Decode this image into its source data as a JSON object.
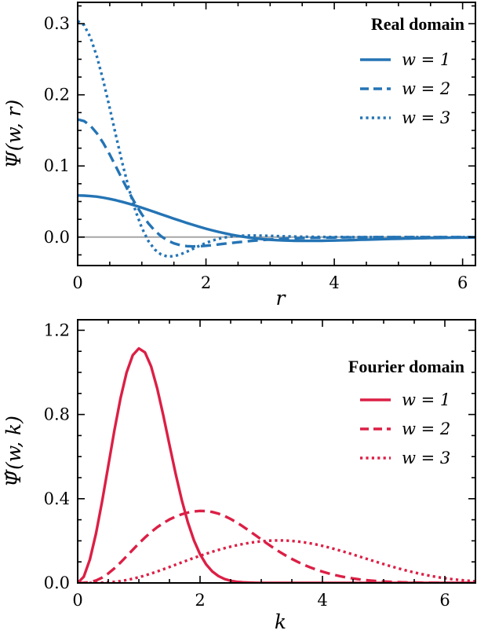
{
  "chart_data": [
    {
      "type": "line",
      "panel": "top",
      "color": "#2474b5",
      "xlabel": "r",
      "ylabel": "Ψ(w, r)",
      "xlim": [
        0,
        6.2
      ],
      "ylim": [
        -0.04,
        0.33
      ],
      "xticks": [
        0,
        2,
        4,
        6
      ],
      "xtick_labels": [
        "0",
        "2",
        "4",
        "6"
      ],
      "yticks": [
        0.0,
        0.1,
        0.2,
        0.3
      ],
      "ytick_labels": [
        "0.0",
        "0.1",
        "0.2",
        "0.3"
      ],
      "zero_line": true,
      "legend": {
        "title": "Real domain",
        "placement": "top-right",
        "entries": [
          {
            "label": "w = 1",
            "style": "solid"
          },
          {
            "label": "w = 2",
            "style": "dashed"
          },
          {
            "label": "w = 3",
            "style": "dotted"
          }
        ]
      },
      "x": [
        0,
        0.1,
        0.2,
        0.3,
        0.4,
        0.5,
        0.6,
        0.7,
        0.8,
        0.9,
        1.0,
        1.1,
        1.2,
        1.3,
        1.4,
        1.5,
        1.6,
        1.7,
        1.8,
        1.9,
        2.0,
        2.1,
        2.2,
        2.3,
        2.4,
        2.5,
        2.6,
        2.7,
        2.8,
        2.9,
        3.0,
        3.1,
        3.2,
        3.3,
        3.4,
        3.5,
        3.6,
        3.7,
        3.8,
        3.9,
        4.0,
        4.1,
        4.2,
        4.3,
        4.4,
        4.5,
        4.6,
        4.7,
        4.8,
        4.9,
        5.0,
        5.1,
        5.2,
        5.3,
        5.4,
        5.5,
        5.6,
        5.7,
        5.8,
        5.9,
        6.0,
        6.1,
        6.2
      ],
      "series": [
        {
          "name": "w = 1",
          "style": "solid",
          "values": [
            0.0585,
            0.0583,
            0.0577,
            0.0568,
            0.0554,
            0.0537,
            0.0517,
            0.0494,
            0.0469,
            0.0442,
            0.0413,
            0.0383,
            0.0352,
            0.0321,
            0.029,
            0.0259,
            0.0229,
            0.0199,
            0.0171,
            0.0144,
            0.0118,
            0.0094,
            0.0072,
            0.0052,
            0.0033,
            0.0017,
            0.0002,
            -0.001,
            -0.0021,
            -0.003,
            -0.0037,
            -0.0043,
            -0.0047,
            -0.005,
            -0.0052,
            -0.0053,
            -0.0053,
            -0.0053,
            -0.0052,
            -0.005,
            -0.0048,
            -0.0046,
            -0.0044,
            -0.0041,
            -0.0038,
            -0.0036,
            -0.0033,
            -0.003,
            -0.0028,
            -0.0025,
            -0.0023,
            -0.0021,
            -0.0019,
            -0.0017,
            -0.0015,
            -0.0013,
            -0.0012,
            -0.0011,
            -0.0009,
            -0.0008,
            -0.0007,
            -0.0007,
            -0.0006
          ]
        },
        {
          "name": "w = 2",
          "style": "dashed",
          "values": [
            0.1654,
            0.1631,
            0.1565,
            0.1459,
            0.1321,
            0.116,
            0.0984,
            0.0805,
            0.0629,
            0.0466,
            0.032,
            0.0195,
            0.0092,
            0.0012,
            -0.0047,
            -0.0088,
            -0.0114,
            -0.0127,
            -0.0131,
            -0.0129,
            -0.0122,
            -0.0113,
            -0.0103,
            -0.0092,
            -0.0082,
            -0.0072,
            -0.0063,
            -0.0054,
            -0.0047,
            -0.004,
            -0.0034,
            -0.0029,
            -0.0024,
            -0.002,
            -0.0017,
            -0.0014,
            -0.0012,
            -0.001,
            -0.0008,
            -0.0007,
            -0.0005,
            -0.0004,
            -0.0003,
            -0.0003,
            -0.0002,
            -0.0002,
            -0.0001,
            -0.0001,
            -0.0001,
            -0.0001,
            0,
            0,
            0,
            0,
            0,
            0,
            0,
            0,
            0,
            0,
            0,
            0,
            0
          ]
        },
        {
          "name": "w = 3",
          "style": "dotted",
          "values": [
            0.3039,
            0.2979,
            0.2806,
            0.2537,
            0.2196,
            0.1812,
            0.1413,
            0.1027,
            0.0675,
            0.0373,
            0.013,
            -0.0052,
            -0.0174,
            -0.0245,
            -0.0273,
            -0.0269,
            -0.0244,
            -0.0206,
            -0.0163,
            -0.0121,
            -0.0082,
            -0.0049,
            -0.0023,
            -0.0004,
            0.0009,
            0.0017,
            0.0021,
            0.0022,
            0.0021,
            0.0019,
            0.0017,
            0.0014,
            0.0011,
            0.0009,
            0.0007,
            0.0005,
            0.0004,
            0.0003,
            0.0002,
            0.0001,
            0.0001,
            0.0001,
            0,
            0,
            0,
            0,
            0,
            0,
            0,
            0,
            0,
            0,
            0,
            0,
            0,
            0,
            0,
            0,
            0,
            0,
            0,
            0,
            0
          ]
        }
      ]
    },
    {
      "type": "line",
      "panel": "bottom",
      "color": "#dc1f45",
      "xlabel": "k",
      "ylabel": "Ψ̂(w, k)",
      "xlim": [
        0,
        6.5
      ],
      "ylim": [
        0,
        1.25
      ],
      "xticks": [
        0,
        2,
        4,
        6
      ],
      "xtick_labels": [
        "0",
        "2",
        "4",
        "6"
      ],
      "yticks": [
        0.0,
        0.4,
        0.8,
        1.2
      ],
      "ytick_labels": [
        "0.0",
        "0.4",
        "0.8",
        "1.2"
      ],
      "zero_line": false,
      "legend": {
        "title": "Fourier domain",
        "placement": "top-right",
        "entries": [
          {
            "label": "w = 1",
            "style": "solid"
          },
          {
            "label": "w = 2",
            "style": "dashed"
          },
          {
            "label": "w = 3",
            "style": "dotted"
          }
        ]
      },
      "x": [
        0,
        0.1,
        0.2,
        0.3,
        0.4,
        0.5,
        0.6,
        0.7,
        0.8,
        0.9,
        1.0,
        1.1,
        1.2,
        1.3,
        1.4,
        1.5,
        1.6,
        1.7,
        1.8,
        1.9,
        2.0,
        2.1,
        2.2,
        2.3,
        2.4,
        2.5,
        2.6,
        2.7,
        2.8,
        2.9,
        3.0,
        3.1,
        3.2,
        3.3,
        3.4,
        3.5,
        3.6,
        3.7,
        3.8,
        3.9,
        4.0,
        4.1,
        4.2,
        4.3,
        4.4,
        4.5,
        4.6,
        4.7,
        4.8,
        4.9,
        5.0,
        5.1,
        5.2,
        5.3,
        5.4,
        5.5,
        5.6,
        5.7,
        5.8,
        5.9,
        6.0,
        6.1,
        6.2,
        6.3,
        6.4,
        6.5
      ],
      "series": [
        {
          "name": "w = 1",
          "style": "solid",
          "values": [
            0,
            0.0295,
            0.1117,
            0.2353,
            0.3883,
            0.556,
            0.7244,
            0.8768,
            0.9999,
            1.0816,
            1.1138,
            1.0949,
            1.0286,
            0.9235,
            0.795,
            0.6561,
            0.5195,
            0.395,
            0.2884,
            0.2022,
            0.1361,
            0.0879,
            0.0546,
            0.0326,
            0.0187,
            0.0103,
            0.0054,
            0.0028,
            0.0014,
            0.0006,
            0.0003,
            0.0001,
            0.0001,
            0,
            0,
            0,
            0,
            0,
            0,
            0,
            0,
            0,
            0,
            0,
            0,
            0,
            0,
            0,
            0,
            0,
            0,
            0,
            0,
            0,
            0,
            0,
            0,
            0,
            0,
            0,
            0,
            0,
            0,
            0,
            0,
            0
          ]
        },
        {
          "name": "w = 2",
          "style": "dashed",
          "values": [
            0,
            0.0005,
            0.0037,
            0.0117,
            0.0254,
            0.0448,
            0.0691,
            0.0969,
            0.1269,
            0.1575,
            0.1875,
            0.2158,
            0.2417,
            0.2646,
            0.2845,
            0.3014,
            0.3152,
            0.3261,
            0.3341,
            0.3395,
            0.342,
            0.3412,
            0.337,
            0.3292,
            0.318,
            0.3037,
            0.287,
            0.2683,
            0.2483,
            0.2276,
            0.2067,
            0.1862,
            0.1664,
            0.1476,
            0.1301,
            0.114,
            0.0993,
            0.0859,
            0.074,
            0.0633,
            0.0537,
            0.0452,
            0.0378,
            0.0313,
            0.0258,
            0.0211,
            0.0171,
            0.0138,
            0.011,
            0.0087,
            0.0069,
            0.0054,
            0.0042,
            0.0032,
            0.0025,
            0.0019,
            0.0014,
            0.0011,
            0.0008,
            0.0006,
            0.0004,
            0.0003,
            0.0002,
            0.0002,
            0.0001,
            0.0001
          ]
        },
        {
          "name": "w = 3",
          "style": "dotted",
          "values": [
            0,
            0,
            0.0001,
            0.0004,
            0.0012,
            0.0027,
            0.0052,
            0.0088,
            0.0137,
            0.0198,
            0.0271,
            0.0354,
            0.0446,
            0.0545,
            0.0649,
            0.0756,
            0.0865,
            0.0974,
            0.1082,
            0.1188,
            0.129,
            0.1388,
            0.1481,
            0.1568,
            0.165,
            0.1724,
            0.179,
            0.1849,
            0.19,
            0.1943,
            0.1978,
            0.2002,
            0.2016,
            0.202,
            0.2013,
            0.1995,
            0.1967,
            0.1929,
            0.1881,
            0.1825,
            0.176,
            0.1688,
            0.161,
            0.1527,
            0.144,
            0.135,
            0.1259,
            0.1166,
            0.1074,
            0.0983,
            0.0894,
            0.0807,
            0.0724,
            0.0644,
            0.0569,
            0.0498,
            0.0432,
            0.0372,
            0.0317,
            0.0268,
            0.0224,
            0.0186,
            0.0152,
            0.0124,
            0.01,
            0.008
          ]
        }
      ]
    }
  ]
}
